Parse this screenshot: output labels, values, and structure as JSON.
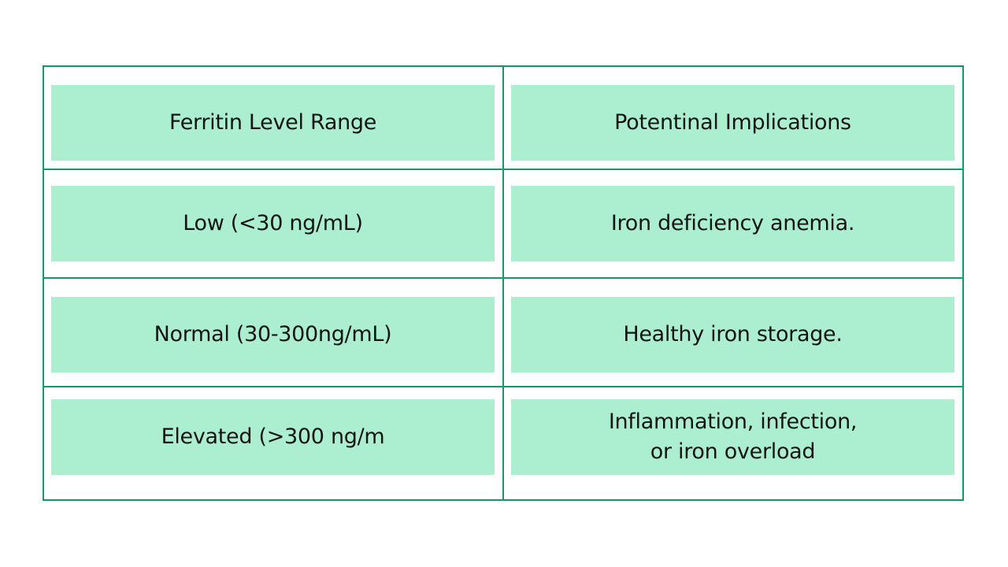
{
  "table": {
    "header": [
      "Ferritin Level Range",
      "Potentinal Implications"
    ],
    "rows": [
      [
        "Low (<30 ng/mL)",
        "Iron deficiency anemia."
      ],
      [
        "Normal (30-300ng/mL)",
        "Healthy iron storage."
      ],
      [
        "Elevated (>300 ng/m",
        "Inflammation, infection,\nor iron overload"
      ]
    ]
  }
}
